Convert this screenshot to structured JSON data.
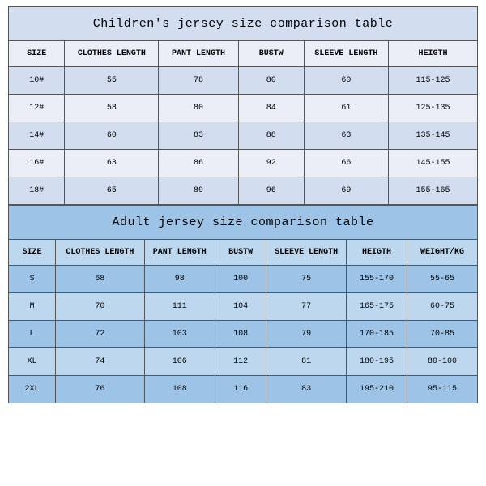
{
  "children": {
    "title": "Children's jersey size comparison table",
    "columns": [
      "SIZE",
      "CLOTHES LENGTH",
      "PANT LENGTH",
      "BUSTW",
      "SLEEVE LENGTH",
      "HEIGTH"
    ],
    "col_widths": [
      "12%",
      "20%",
      "17%",
      "14%",
      "18%",
      "19%"
    ],
    "rows": [
      [
        "10#",
        "55",
        "78",
        "80",
        "60",
        "115-125"
      ],
      [
        "12#",
        "58",
        "80",
        "84",
        "61",
        "125-135"
      ],
      [
        "14#",
        "60",
        "83",
        "88",
        "63",
        "135-145"
      ],
      [
        "16#",
        "63",
        "86",
        "92",
        "66",
        "145-155"
      ],
      [
        "18#",
        "65",
        "89",
        "96",
        "69",
        "155-165"
      ]
    ],
    "title_bg": "#d2deef",
    "row_bg_odd": "#d2deef",
    "row_bg_even": "#eaeff7"
  },
  "adult": {
    "title": "Adult jersey size comparison table",
    "columns": [
      "SIZE",
      "CLOTHES LENGTH",
      "PANT LENGTH",
      "BUSTW",
      "SLEEVE LENGTH",
      "HEIGTH",
      "WEIGHT/KG"
    ],
    "col_widths": [
      "10%",
      "19%",
      "15%",
      "11%",
      "17%",
      "13%",
      "15%"
    ],
    "rows": [
      [
        "S",
        "68",
        "98",
        "100",
        "75",
        "155-170",
        "55-65"
      ],
      [
        "M",
        "70",
        "111",
        "104",
        "77",
        "165-175",
        "60-75"
      ],
      [
        "L",
        "72",
        "103",
        "108",
        "79",
        "170-185",
        "70-85"
      ],
      [
        "XL",
        "74",
        "106",
        "112",
        "81",
        "180-195",
        "80-100"
      ],
      [
        "2XL",
        "76",
        "108",
        "116",
        "83",
        "195-210",
        "95-115"
      ]
    ],
    "title_bg": "#9dc3e6",
    "row_bg_odd": "#9dc3e6",
    "row_bg_even": "#bdd7ee"
  },
  "border_color": "#555555",
  "font_family": "Courier New"
}
